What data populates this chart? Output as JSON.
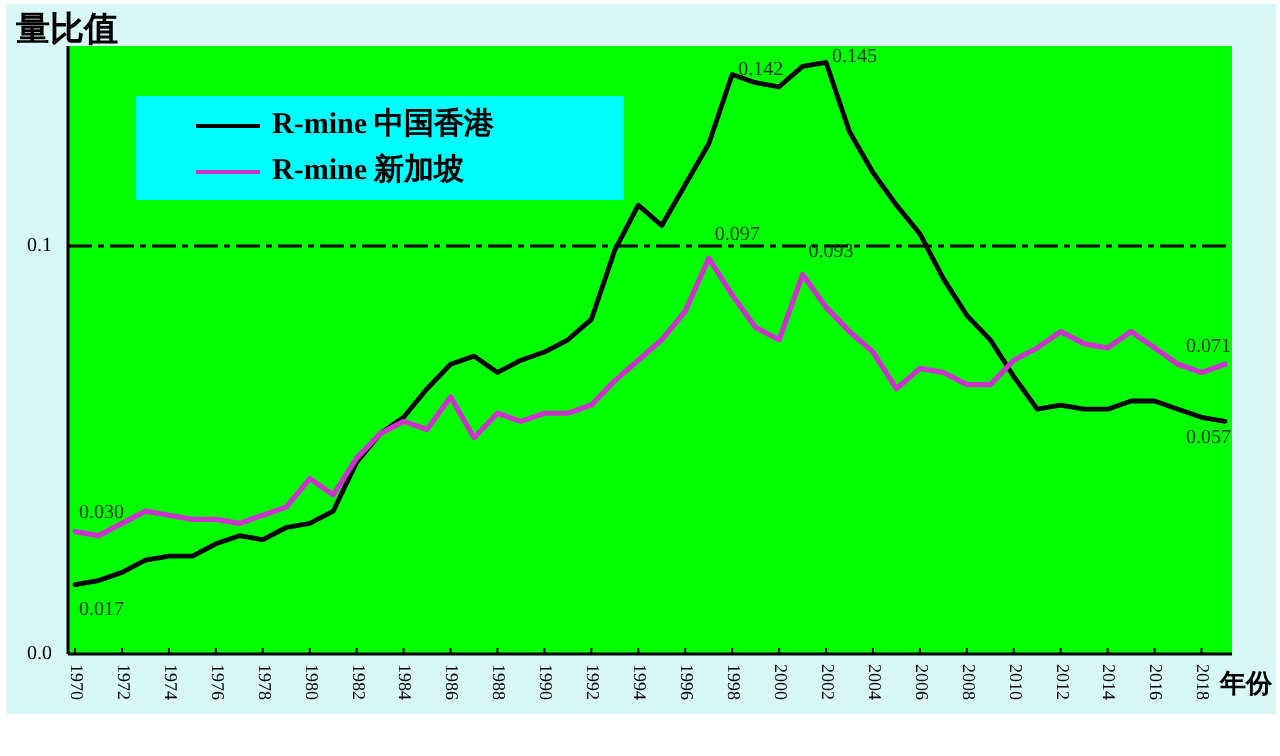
{
  "chart_data": {
    "type": "line",
    "ylabel": "量比值",
    "xlabel": "年份",
    "x": [
      1970,
      1971,
      1972,
      1973,
      1974,
      1975,
      1976,
      1977,
      1978,
      1979,
      1980,
      1981,
      1982,
      1983,
      1984,
      1985,
      1986,
      1987,
      1988,
      1989,
      1990,
      1991,
      1992,
      1993,
      1994,
      1995,
      1996,
      1997,
      1998,
      1999,
      2000,
      2001,
      2002,
      2003,
      2004,
      2005,
      2006,
      2007,
      2008,
      2009,
      2010,
      2011,
      2012,
      2013,
      2014,
      2015,
      2016,
      2017,
      2018,
      2019
    ],
    "series": [
      {
        "name": "R-mine 中国香港",
        "color": "#000000",
        "values": [
          0.017,
          0.018,
          0.02,
          0.023,
          0.024,
          0.024,
          0.027,
          0.029,
          0.028,
          0.031,
          0.032,
          0.035,
          0.047,
          0.054,
          0.058,
          0.065,
          0.071,
          0.073,
          0.069,
          0.072,
          0.074,
          0.077,
          0.082,
          0.099,
          0.11,
          0.105,
          0.115,
          0.125,
          0.142,
          0.14,
          0.139,
          0.144,
          0.145,
          0.128,
          0.118,
          0.11,
          0.103,
          0.092,
          0.083,
          0.077,
          0.068,
          0.06,
          0.061,
          0.06,
          0.06,
          0.062,
          0.062,
          0.06,
          0.058,
          0.057
        ],
        "value_labels": [
          "0.017",
          null,
          null,
          null,
          null,
          null,
          null,
          null,
          null,
          null,
          null,
          null,
          null,
          null,
          null,
          null,
          null,
          null,
          null,
          null,
          null,
          null,
          null,
          null,
          null,
          null,
          null,
          null,
          "0.142",
          null,
          null,
          null,
          "0.145",
          null,
          null,
          null,
          null,
          null,
          null,
          null,
          null,
          null,
          null,
          null,
          null,
          null,
          null,
          null,
          null,
          "0.057"
        ]
      },
      {
        "name": "R-mine 新加坡",
        "color": "#cc33cc",
        "values": [
          0.03,
          0.029,
          0.032,
          0.035,
          0.034,
          0.033,
          0.033,
          0.032,
          0.034,
          0.036,
          0.043,
          0.039,
          0.048,
          0.054,
          0.057,
          0.055,
          0.063,
          0.053,
          0.059,
          0.057,
          0.059,
          0.059,
          0.061,
          0.067,
          0.072,
          0.077,
          0.084,
          0.097,
          0.088,
          0.08,
          0.077,
          0.093,
          0.085,
          0.079,
          0.074,
          0.065,
          0.07,
          0.069,
          0.066,
          0.066,
          0.072,
          0.075,
          0.079,
          0.076,
          0.075,
          0.079,
          0.075,
          0.071,
          0.069,
          0.071
        ],
        "value_labels": [
          "0.030",
          null,
          null,
          null,
          null,
          null,
          null,
          null,
          null,
          null,
          null,
          null,
          null,
          null,
          null,
          null,
          null,
          null,
          null,
          null,
          null,
          null,
          null,
          null,
          null,
          null,
          null,
          "0.097",
          null,
          null,
          null,
          "0.093",
          null,
          null,
          null,
          null,
          null,
          null,
          null,
          null,
          null,
          null,
          null,
          null,
          null,
          null,
          null,
          null,
          null,
          "0.071"
        ]
      }
    ],
    "xlim": [
      1969.7,
      2019.3
    ],
    "xticks": [
      1970,
      1972,
      1974,
      1976,
      1978,
      1980,
      1982,
      1984,
      1986,
      1988,
      1990,
      1992,
      1994,
      1996,
      1998,
      2000,
      2002,
      2004,
      2006,
      2008,
      2010,
      2012,
      2014,
      2016,
      2018
    ],
    "ylim": [
      0,
      0.149
    ],
    "yticks": [
      {
        "value": 0,
        "label": "0.0"
      },
      0.1
    ],
    "ref_lines": [
      {
        "axis": "y",
        "value": 0.1,
        "line_style": "dashed",
        "color": "#000000"
      }
    ],
    "legend": "top left",
    "grid": false
  }
}
